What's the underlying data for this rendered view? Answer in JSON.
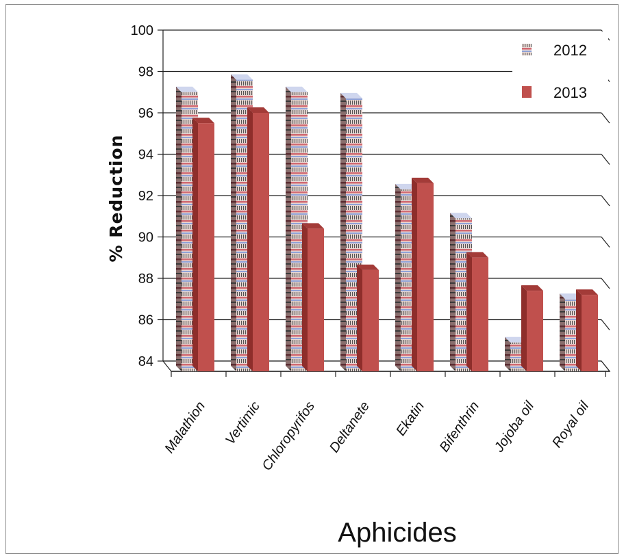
{
  "chart_data": {
    "type": "bar",
    "title": "",
    "xlabel": "Aphicides",
    "ylabel": "% Reduction",
    "ylim": [
      84,
      100
    ],
    "yticks": [
      84,
      86,
      88,
      90,
      92,
      94,
      96,
      98,
      100
    ],
    "grid": true,
    "legend_position": "top-right",
    "categories": [
      "Malathion",
      "Vertimic",
      "Chloropyrifos",
      "Deltanete",
      "Ekatin",
      "Bifenthrin",
      "Jojoba oil",
      "Royal oil"
    ],
    "series": [
      {
        "name": "2012",
        "values": [
          97.0,
          97.6,
          97.0,
          96.7,
          92.3,
          90.9,
          84.9,
          87.0
        ],
        "color": "#d9c3c0",
        "pattern": "patterned"
      },
      {
        "name": "2013",
        "values": [
          95.5,
          96.0,
          90.4,
          88.4,
          92.6,
          89.0,
          87.4,
          87.2
        ],
        "color": "#c0504d"
      }
    ]
  }
}
